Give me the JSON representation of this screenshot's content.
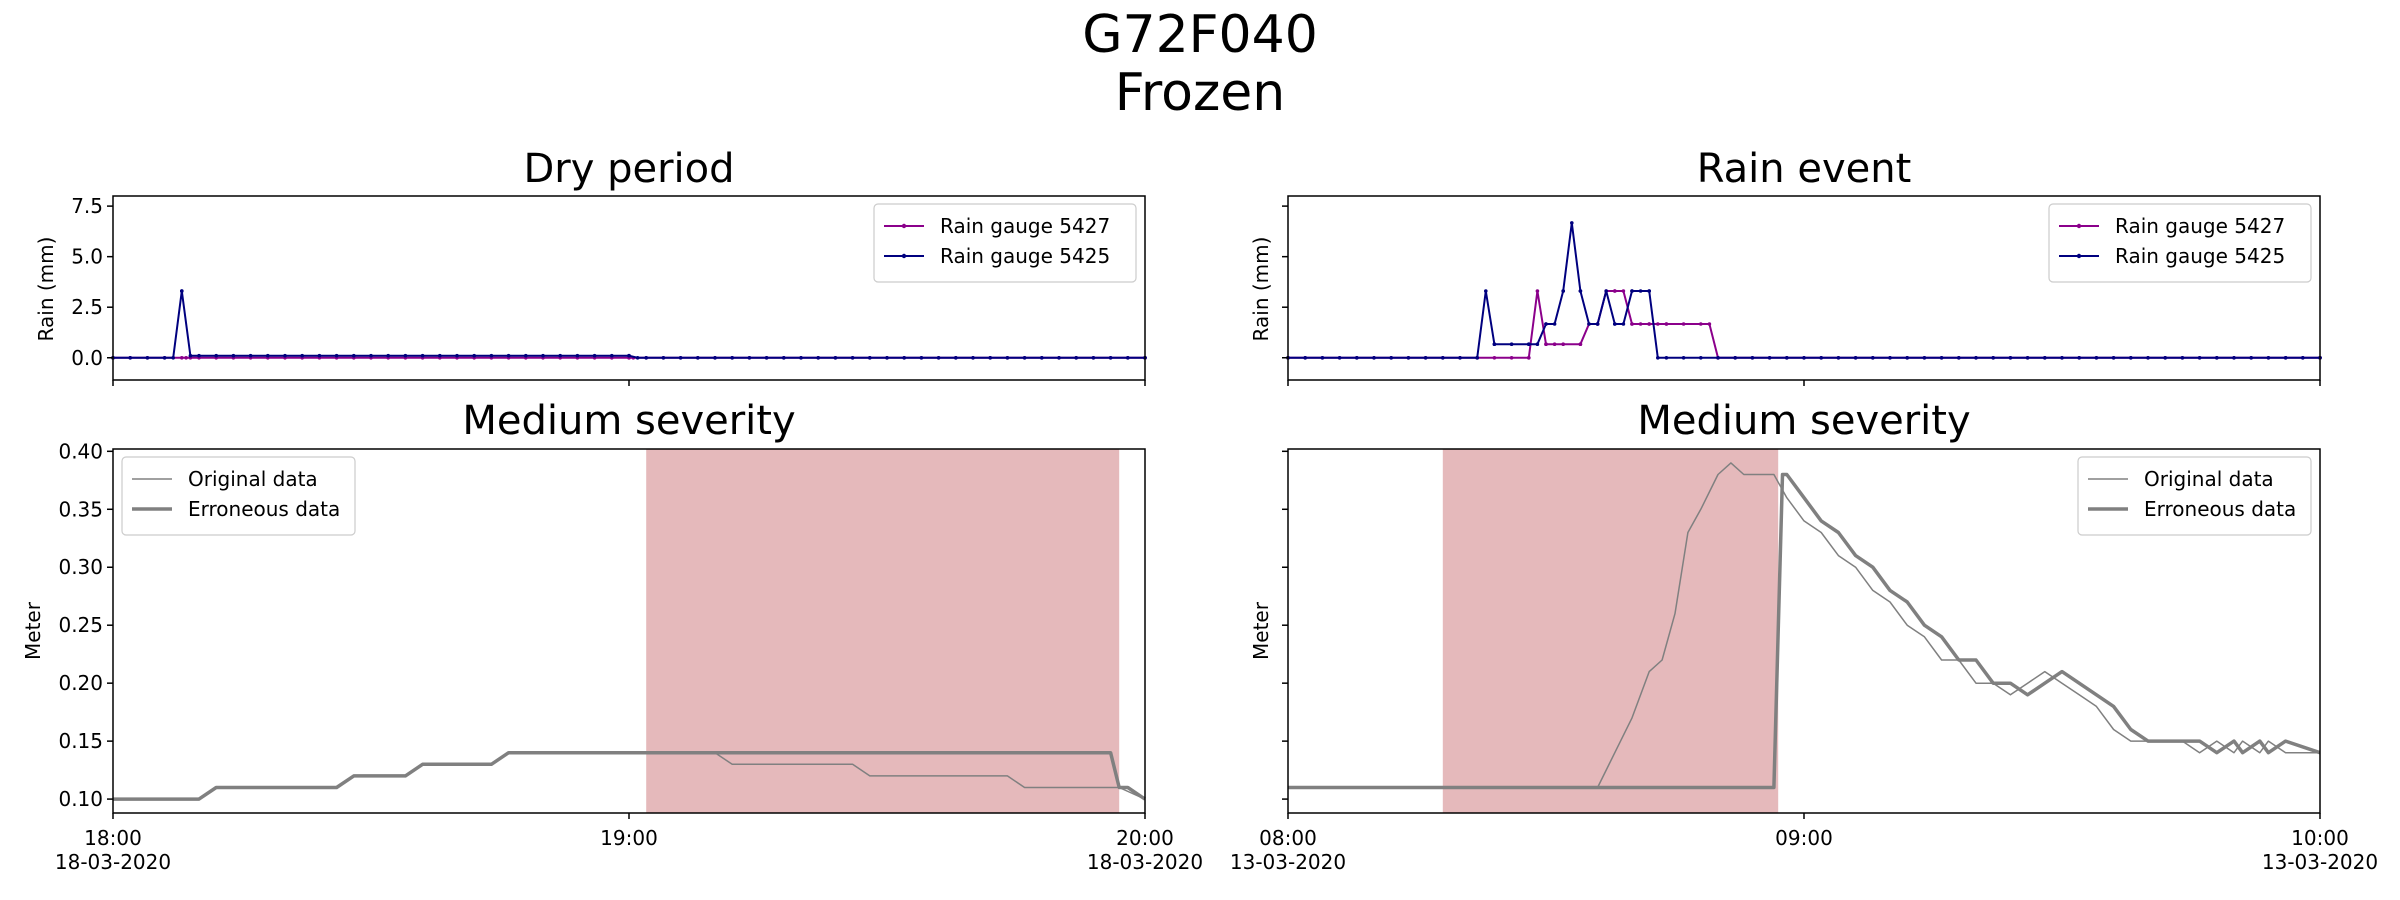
{
  "figure": {
    "title_line1": "G72F040",
    "title_line2": "Frozen"
  },
  "colors": {
    "gauge_5427": "#8b008b",
    "gauge_5425": "#00007f",
    "original": "#808080",
    "erroneous": "#808080",
    "error_span": "#e5b9bb"
  },
  "chart_data": [
    {
      "type": "line",
      "title": "Dry period",
      "ylabel": "Rain (mm)",
      "x_unit": "minutes",
      "xlim": [
        0,
        120
      ],
      "ylim": [
        -1.1,
        8.0
      ],
      "yticks": [
        "0.0",
        "2.5",
        "5.0",
        "7.5"
      ],
      "legend": "top-right",
      "series": [
        {
          "name": "Rain gauge 5427",
          "x": [
            0,
            8.5,
            9,
            60,
            60.5,
            120
          ],
          "y": [
            0,
            0,
            0,
            0,
            0,
            0
          ]
        },
        {
          "name": "Rain gauge 5425",
          "x": [
            0,
            7,
            8,
            9,
            60,
            61,
            120
          ],
          "y": [
            0,
            0,
            3.3,
            0.1,
            0.1,
            0,
            0
          ]
        }
      ]
    },
    {
      "type": "line",
      "title": "Rain event",
      "ylabel": "Rain (mm)",
      "x_unit": "minutes",
      "xlim": [
        0,
        120
      ],
      "ylim": [
        -1.1,
        8.0
      ],
      "yticks": [
        "",
        "",
        "",
        ""
      ],
      "legend": "top-right",
      "series": [
        {
          "name": "Rain gauge 5427",
          "x": [
            0,
            28,
            29,
            30,
            31,
            34,
            35,
            36,
            37,
            38,
            39,
            40,
            41,
            42,
            43,
            44,
            49,
            50,
            120
          ],
          "y": [
            0,
            0,
            3.3,
            0.67,
            0.67,
            0.67,
            1.67,
            1.67,
            3.3,
            3.3,
            3.3,
            1.67,
            1.67,
            1.67,
            1.67,
            1.67,
            1.67,
            0,
            0
          ]
        },
        {
          "name": "Rain gauge 5425",
          "x": [
            0,
            22,
            23,
            24,
            28,
            29,
            30,
            31,
            32,
            33,
            34,
            35,
            36,
            37,
            38,
            39,
            40,
            41,
            42,
            43,
            120
          ],
          "y": [
            0,
            0,
            3.3,
            0.67,
            0.67,
            0.67,
            1.67,
            1.67,
            3.3,
            6.67,
            3.3,
            1.67,
            1.67,
            3.3,
            1.67,
            1.67,
            3.3,
            3.3,
            3.3,
            0,
            0
          ]
        }
      ]
    },
    {
      "type": "line",
      "title": "Medium severity",
      "ylabel": "Meter",
      "x_unit": "minutes",
      "xlim": [
        0,
        120
      ],
      "ylim": [
        0.088,
        0.402
      ],
      "yticks": [
        "0.10",
        "0.15",
        "0.20",
        "0.25",
        "0.30",
        "0.35",
        "0.40"
      ],
      "xticks": [
        {
          "x": 0,
          "line1": "18:00",
          "line2": "18-03-2020"
        },
        {
          "x": 60,
          "line1": "19:00",
          "line2": ""
        },
        {
          "x": 120,
          "line1": "20:00",
          "line2": "18-03-2020"
        }
      ],
      "highlight": [
        62,
        117
      ],
      "legend": "upper left",
      "series": [
        {
          "name": "Original data",
          "x": [
            0,
            10,
            12,
            26,
            28,
            34,
            36,
            44,
            46,
            70,
            72,
            86,
            88,
            104,
            106,
            116,
            117,
            120
          ],
          "y": [
            0.1,
            0.1,
            0.11,
            0.11,
            0.12,
            0.12,
            0.13,
            0.13,
            0.14,
            0.14,
            0.13,
            0.13,
            0.12,
            0.12,
            0.11,
            0.11,
            0.11,
            0.1
          ]
        },
        {
          "name": "Erroneous data",
          "x": [
            0,
            10,
            12,
            26,
            28,
            34,
            36,
            44,
            46,
            116,
            117,
            118,
            120
          ],
          "y": [
            0.1,
            0.1,
            0.11,
            0.11,
            0.12,
            0.12,
            0.13,
            0.13,
            0.14,
            0.14,
            0.11,
            0.11,
            0.1
          ]
        }
      ]
    },
    {
      "type": "line",
      "title": "Medium severity",
      "ylabel": "Meter",
      "x_unit": "minutes",
      "xlim": [
        0,
        120
      ],
      "ylim": [
        0.088,
        0.402
      ],
      "yticks": [
        "",
        "",
        "",
        "",
        "",
        "",
        ""
      ],
      "xticks": [
        {
          "x": 0,
          "line1": "08:00",
          "line2": "13-03-2020"
        },
        {
          "x": 60,
          "line1": "09:00",
          "line2": ""
        },
        {
          "x": 120,
          "line1": "10:00",
          "line2": "13-03-2020"
        }
      ],
      "highlight": [
        18,
        57
      ],
      "legend": "upper right",
      "series": [
        {
          "name": "Original data",
          "x": [
            0,
            36,
            38,
            40,
            42,
            43.5,
            45,
            46.5,
            48,
            50,
            51.5,
            53,
            55,
            56.5,
            58,
            60,
            62,
            64,
            66,
            68,
            70,
            72,
            74,
            76,
            78,
            80,
            82,
            84,
            86,
            88,
            90,
            92,
            94,
            96,
            98,
            100,
            102,
            104,
            106,
            108,
            110,
            111,
            113,
            114,
            116,
            120
          ],
          "y": [
            0.11,
            0.11,
            0.14,
            0.17,
            0.21,
            0.22,
            0.26,
            0.33,
            0.35,
            0.38,
            0.39,
            0.38,
            0.38,
            0.38,
            0.36,
            0.34,
            0.33,
            0.31,
            0.3,
            0.28,
            0.27,
            0.25,
            0.24,
            0.22,
            0.22,
            0.2,
            0.2,
            0.19,
            0.2,
            0.21,
            0.2,
            0.19,
            0.18,
            0.16,
            0.15,
            0.15,
            0.15,
            0.15,
            0.14,
            0.15,
            0.14,
            0.15,
            0.14,
            0.15,
            0.14,
            0.14
          ]
        },
        {
          "name": "Erroneous data",
          "x": [
            0,
            56.5,
            57.5,
            58,
            60,
            62,
            64,
            66,
            68,
            70,
            72,
            74,
            76,
            78,
            80,
            82,
            84,
            86,
            88,
            90,
            92,
            94,
            96,
            98,
            100,
            102,
            104,
            106,
            108,
            110,
            111,
            113,
            114,
            116,
            120
          ],
          "y": [
            0.11,
            0.11,
            0.38,
            0.38,
            0.36,
            0.34,
            0.33,
            0.31,
            0.3,
            0.28,
            0.27,
            0.25,
            0.24,
            0.22,
            0.22,
            0.2,
            0.2,
            0.19,
            0.2,
            0.21,
            0.2,
            0.19,
            0.18,
            0.16,
            0.15,
            0.15,
            0.15,
            0.15,
            0.14,
            0.15,
            0.14,
            0.15,
            0.14,
            0.15,
            0.14
          ]
        }
      ]
    }
  ]
}
